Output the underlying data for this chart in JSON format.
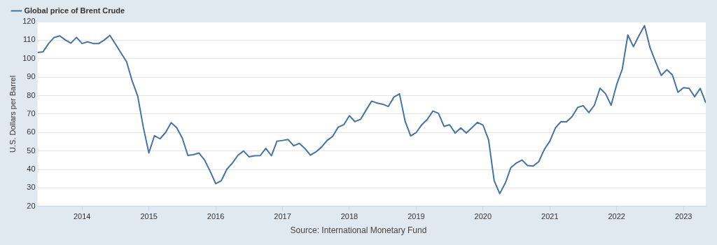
{
  "chart_data": {
    "type": "line",
    "ylabel": "U.S. Dollars per Barrel",
    "legend": "top left",
    "grid": "y",
    "marker": "none",
    "line_style": "solid",
    "annotations": [
      "Source: International Monetary Fund"
    ],
    "xlim": [
      "2013-05",
      "2023-05"
    ],
    "xticks": [
      "2014",
      "2015",
      "2016",
      "2017",
      "2018",
      "2019",
      "2020",
      "2021",
      "2022",
      "2023"
    ],
    "ylim": [
      20,
      120
    ],
    "yticks": [
      20,
      30,
      40,
      50,
      60,
      70,
      80,
      90,
      100,
      110,
      120
    ],
    "x": [
      "2013-05",
      "2013-06",
      "2013-07",
      "2013-08",
      "2013-09",
      "2013-10",
      "2013-11",
      "2013-12",
      "2014-01",
      "2014-02",
      "2014-03",
      "2014-04",
      "2014-05",
      "2014-06",
      "2014-07",
      "2014-08",
      "2014-09",
      "2014-10",
      "2014-11",
      "2014-12",
      "2015-01",
      "2015-02",
      "2015-03",
      "2015-04",
      "2015-05",
      "2015-06",
      "2015-07",
      "2015-08",
      "2015-09",
      "2015-10",
      "2015-11",
      "2015-12",
      "2016-01",
      "2016-02",
      "2016-03",
      "2016-04",
      "2016-05",
      "2016-06",
      "2016-07",
      "2016-08",
      "2016-09",
      "2016-10",
      "2016-11",
      "2016-12",
      "2017-01",
      "2017-02",
      "2017-03",
      "2017-04",
      "2017-05",
      "2017-06",
      "2017-07",
      "2017-08",
      "2017-09",
      "2017-10",
      "2017-11",
      "2017-12",
      "2018-01",
      "2018-02",
      "2018-03",
      "2018-04",
      "2018-05",
      "2018-06",
      "2018-07",
      "2018-08",
      "2018-09",
      "2018-10",
      "2018-11",
      "2018-12",
      "2019-01",
      "2019-02",
      "2019-03",
      "2019-04",
      "2019-05",
      "2019-06",
      "2019-07",
      "2019-08",
      "2019-09",
      "2019-10",
      "2019-11",
      "2019-12",
      "2020-01",
      "2020-02",
      "2020-03",
      "2020-04",
      "2020-05",
      "2020-06",
      "2020-07",
      "2020-08",
      "2020-09",
      "2020-10",
      "2020-11",
      "2020-12",
      "2021-01",
      "2021-02",
      "2021-03",
      "2021-04",
      "2021-05",
      "2021-06",
      "2021-07",
      "2021-08",
      "2021-09",
      "2021-10",
      "2021-11",
      "2021-12",
      "2022-01",
      "2022-02",
      "2022-03",
      "2022-04",
      "2022-05",
      "2022-06",
      "2022-07",
      "2022-08",
      "2022-09",
      "2022-10",
      "2022-11",
      "2022-12",
      "2023-01",
      "2023-02",
      "2023-03",
      "2023-04",
      "2023-05"
    ],
    "series": [
      {
        "name": "Global price of Brent Crude",
        "color": "#4572a7",
        "values": [
          103.3,
          103.7,
          108.2,
          111.5,
          112.3,
          110.1,
          108.4,
          111.5,
          108.2,
          109.1,
          108.2,
          108.2,
          110.1,
          112.6,
          107.9,
          103,
          98.3,
          87.9,
          79.7,
          62.8,
          48.9,
          58.3,
          56.6,
          60,
          65.3,
          62.6,
          57,
          47.6,
          48,
          48.9,
          45.1,
          39,
          32.3,
          33.9,
          40.1,
          43.5,
          47.7,
          50,
          46.8,
          47.4,
          47.5,
          51.4,
          47.4,
          55.3,
          55.7,
          56.2,
          52.8,
          54.1,
          51.4,
          47.7,
          49.5,
          52.1,
          55.7,
          57.9,
          62.9,
          64.2,
          69.1,
          65.9,
          67.1,
          72.1,
          77,
          75.9,
          75.3,
          74.1,
          79.2,
          80.9,
          66.2,
          58.2,
          60,
          64.2,
          67.1,
          71.6,
          70.4,
          63.3,
          64.2,
          59.7,
          62.5,
          59.7,
          62.6,
          65.5,
          64,
          56,
          33.9,
          26.9,
          32.6,
          41,
          43.5,
          45.1,
          42.1,
          41.8,
          44.2,
          50.8,
          55.3,
          62.5,
          65.9,
          65.8,
          68.6,
          73.6,
          74.5,
          70.8,
          74.8,
          84,
          81,
          74.8,
          86,
          94.3,
          112.8,
          106.5,
          112.4,
          117.9,
          105.8,
          98.2,
          90.9,
          94,
          91.2,
          81.8,
          84.3,
          83.9,
          79.4,
          83.9,
          76.1
        ]
      }
    ]
  }
}
